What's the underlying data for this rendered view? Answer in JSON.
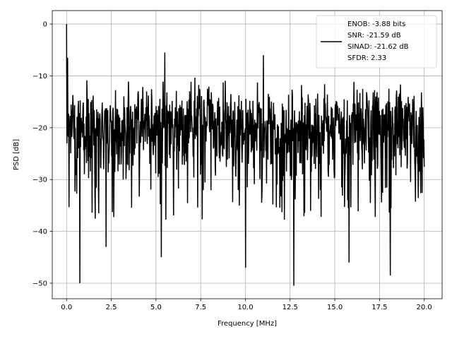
{
  "chart_data": {
    "type": "line",
    "title": "",
    "xlabel": "Frequency [MHz]",
    "ylabel": "PSD [dB]",
    "xlim": [
      -0.8,
      21.0
    ],
    "ylim": [
      -53,
      2.6
    ],
    "xticks": [
      0.0,
      2.5,
      5.0,
      7.5,
      10.0,
      12.5,
      15.0,
      17.5,
      20.0
    ],
    "xtick_labels": [
      "0.0",
      "2.5",
      "5.0",
      "7.5",
      "10.0",
      "12.5",
      "15.0",
      "17.5",
      "20.0"
    ],
    "yticks": [
      0,
      -10,
      -20,
      -30,
      -40,
      -50
    ],
    "ytick_labels": [
      "0",
      "−10",
      "−20",
      "−30",
      "−40",
      "−50"
    ],
    "grid": true,
    "legend_position": "top-right",
    "legend_lines": [
      "ENOB: -3.88 bits",
      "SNR: -21.59 dB",
      "SINAD: -21.62 dB",
      "SFDR: 2.33"
    ],
    "series": [
      {
        "color": "#000000",
        "x_range": [
          0.0,
          20.0
        ],
        "points": 1024,
        "peak": {
          "x": 0.02,
          "y": 0.0
        },
        "typical_high": -10,
        "typical_low": -33,
        "notable_minima": [
          {
            "x": 0.75,
            "y": -50.0
          },
          {
            "x": 12.7,
            "y": -50.5
          },
          {
            "x": 10.0,
            "y": -47.0
          },
          {
            "x": 18.1,
            "y": -48.5
          },
          {
            "x": 15.8,
            "y": -46.0
          },
          {
            "x": 5.3,
            "y": -45.0
          },
          {
            "x": 2.2,
            "y": -43.0
          }
        ],
        "notable_maxima": [
          {
            "x": 5.5,
            "y": -5.5
          },
          {
            "x": 11.0,
            "y": -6.0
          },
          {
            "x": 0.05,
            "y": -6.5
          }
        ]
      }
    ]
  }
}
